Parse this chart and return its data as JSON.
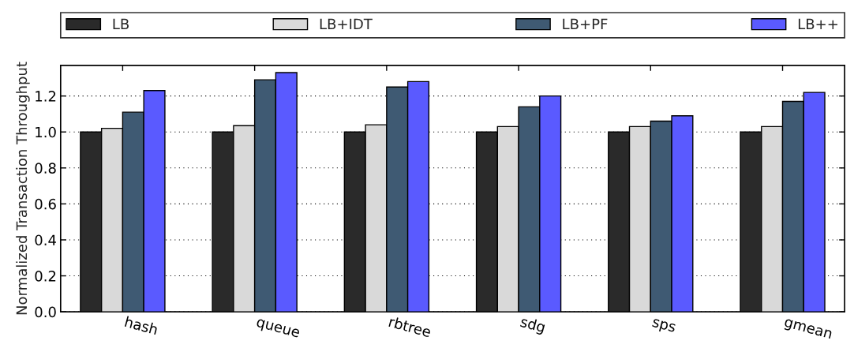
{
  "chart_data": {
    "type": "bar",
    "ylabel": "Normalized Transaction Throughput",
    "categories": [
      "hash",
      "queue",
      "rbtree",
      "sdg",
      "sps",
      "gmean"
    ],
    "series": [
      {
        "name": "LB",
        "color": "#2a2a2a",
        "values": [
          1.0,
          1.0,
          1.0,
          1.0,
          1.0,
          1.0
        ]
      },
      {
        "name": "LB+IDT",
        "color": "#d9d9d9",
        "values": [
          1.02,
          1.035,
          1.04,
          1.03,
          1.03,
          1.03
        ]
      },
      {
        "name": "LB+PF",
        "color": "#3f5a73",
        "values": [
          1.11,
          1.29,
          1.25,
          1.14,
          1.06,
          1.17
        ]
      },
      {
        "name": "LB++",
        "color": "#5a5aff",
        "values": [
          1.23,
          1.33,
          1.28,
          1.2,
          1.09,
          1.22
        ]
      }
    ],
    "ylim": [
      0,
      1.37
    ],
    "yticks": [
      {
        "value": 0,
        "label": "0.0"
      },
      0.2,
      0.4,
      0.6,
      0.8,
      {
        "value": 1,
        "label": "1.0"
      },
      1.2
    ],
    "grid": "y",
    "legend": "top"
  }
}
